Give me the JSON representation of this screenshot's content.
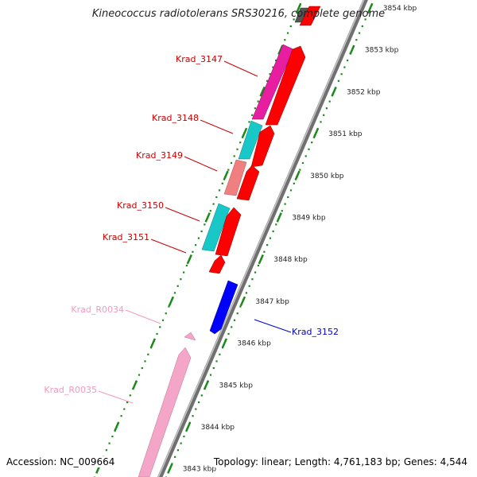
{
  "map": {
    "title": "Kineococcus radiotolerans SRS30216, complete genome",
    "accession": "Accession: NC_009664",
    "summary": "Topology: linear; Length: 4,761,183 bp; Genes: 4,544"
  },
  "colors": {
    "tick": "#1a8a1a",
    "axis": "#888888",
    "gene_plus": "#ff0000",
    "gene_minus": "#0000ff",
    "rna": "#f4a6c8",
    "magenta": "#e81ea0",
    "cyan": "#18c8c8",
    "salmon": "#f08080",
    "dark": "#555555"
  },
  "scale_labels": [
    "3854 kbp",
    "3853 kbp",
    "3852 kbp",
    "3851 kbp",
    "3850 kbp",
    "3849 kbp",
    "3848 kbp",
    "3847 kbp",
    "3846 kbp",
    "3845 kbp",
    "3844 kbp",
    "3843 kbp"
  ],
  "genes": [
    {
      "name": "Krad_3147",
      "color": "#cc0000"
    },
    {
      "name": "Krad_3148",
      "color": "#cc0000"
    },
    {
      "name": "Krad_3149",
      "color": "#cc0000"
    },
    {
      "name": "Krad_3150",
      "color": "#cc0000"
    },
    {
      "name": "Krad_3151",
      "color": "#cc0000"
    },
    {
      "name": "Krad_R0034",
      "color": "#f29ac0"
    },
    {
      "name": "Krad_3152",
      "color": "#0000cc"
    },
    {
      "name": "Krad_R0035",
      "color": "#f29ac0"
    }
  ]
}
